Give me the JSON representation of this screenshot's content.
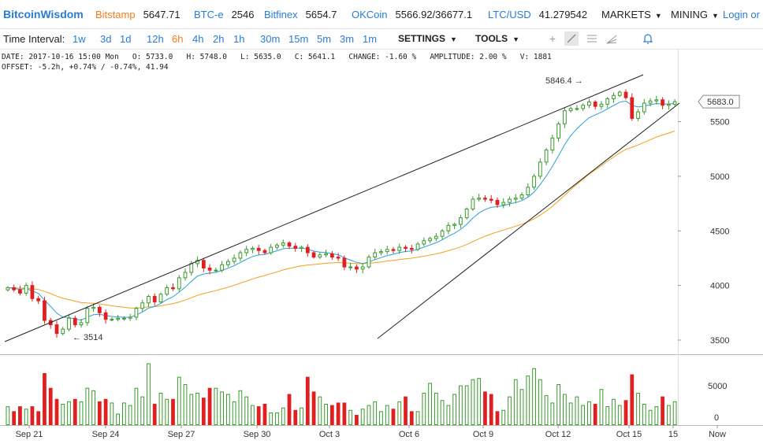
{
  "header": {
    "brand": "BitcoinWisdom",
    "tickers": [
      {
        "name": "Bitstamp",
        "price": "5647.71",
        "accent": "#f07c1f"
      },
      {
        "name": "BTC-e",
        "price": "2546",
        "accent": "#2a7bd6"
      },
      {
        "name": "Bitfinex",
        "price": "5654.7",
        "accent": "#2a7bd6"
      },
      {
        "name": "OKCoin",
        "price": "5566.92/36677.1",
        "accent": "#2a7bd6"
      },
      {
        "name": "LTC/USD",
        "price": "41.279542",
        "accent": "#2a7bd6"
      }
    ],
    "menus": [
      "MARKETS",
      "MINING"
    ],
    "login": "Login or Re"
  },
  "toolbar": {
    "label": "Time Interval:",
    "intervals": [
      "1w",
      "3d",
      "1d",
      "12h",
      "6h",
      "4h",
      "2h",
      "1h",
      "30m",
      "15m",
      "5m",
      "3m",
      "1m"
    ],
    "active_interval": "6h",
    "settings": "SETTINGS",
    "tools": "TOOLS",
    "tool_icons": [
      "crosshair-icon",
      "line-tool-icon",
      "parallel-lines-icon",
      "fan-tool-icon",
      "alarm-bell-icon"
    ]
  },
  "info": {
    "line1": "DATE: 2017-10-16 15:00 Mon   O: 5733.0   H: 5748.0   L: 5635.0   C: 5641.1   CHANGE: -1.60 %   AMPLITUDE: 2.00 %   V: 1881",
    "line2": "OFFSET: -5.2h, +0.74% / -0.74%, 41.94"
  },
  "chart_data": {
    "type": "candlestick",
    "price_axis": {
      "ticks": [
        "5500",
        "5000",
        "4500",
        "4000",
        "3500"
      ],
      "range": [
        3500,
        5850
      ]
    },
    "volume_axis": {
      "ticks": [
        "5000",
        "0"
      ]
    },
    "date_labels": [
      "Sep 21",
      "Sep 24",
      "Sep 27",
      "Sep 30",
      "Oct 3",
      "Oct 6",
      "Oct 9",
      "Oct 12",
      "Oct 15",
      "15",
      "Now"
    ],
    "current_price": "5683.0",
    "annotations": {
      "high": "5846.4 →",
      "low": "← 3514"
    },
    "colors": {
      "up": "#3a9a2e",
      "down": "#e02020",
      "ema_fast": "#2aa0d6",
      "ema_slow": "#f0a020",
      "trend": "#222"
    },
    "closes": [
      3980,
      3960,
      3930,
      4000,
      3880,
      3860,
      3680,
      3640,
      3560,
      3600,
      3700,
      3640,
      3660,
      3790,
      3800,
      3750,
      3690,
      3690,
      3700,
      3700,
      3710,
      3790,
      3840,
      3900,
      3850,
      3920,
      3980,
      3970,
      4070,
      4120,
      4200,
      4230,
      4160,
      4140,
      4140,
      4190,
      4220,
      4250,
      4300,
      4330,
      4340,
      4320,
      4300,
      4350,
      4370,
      4390,
      4360,
      4340,
      4350,
      4300,
      4260,
      4280,
      4290,
      4260,
      4250,
      4170,
      4170,
      4150,
      4170,
      4260,
      4300,
      4310,
      4330,
      4320,
      4350,
      4340,
      4330,
      4380,
      4410,
      4430,
      4450,
      4500,
      4550,
      4560,
      4620,
      4700,
      4790,
      4800,
      4790,
      4780,
      4740,
      4760,
      4790,
      4800,
      4830,
      4900,
      5000,
      5130,
      5240,
      5350,
      5480,
      5600,
      5620,
      5620,
      5650,
      5680,
      5640,
      5660,
      5710,
      5740,
      5770,
      5720,
      5530,
      5590,
      5670,
      5690,
      5700,
      5650,
      5660,
      5683
    ],
    "volumes": [
      1500,
      1100,
      1500,
      1300,
      1500,
      1100,
      4200,
      3000,
      2100,
      1700,
      1900,
      2100,
      1900,
      3000,
      2800,
      1900,
      2100,
      1800,
      900,
      1800,
      1600,
      3000,
      2300,
      5000,
      1700,
      2600,
      2100,
      2100,
      3900,
      3300,
      2500,
      2600,
      2200,
      3000,
      3000,
      2700,
      2500,
      1900,
      2800,
      2300,
      1600,
      1500,
      1700,
      1000,
      1000,
      1400,
      2500,
      1200,
      1400,
      3900,
      2700,
      2300,
      1700,
      1600,
      1800,
      1800,
      1200,
      800,
      1300,
      1600,
      1900,
      1100,
      1600,
      1300,
      1900,
      2300,
      1100,
      1100,
      2600,
      3400,
      2600,
      2000,
      1600,
      2500,
      3200,
      3200,
      3700,
      3800,
      2700,
      2500,
      1100,
      1200,
      2300,
      3700,
      2900,
      4000,
      4600,
      3700,
      2400,
      1800,
      3300,
      2500,
      1800,
      2300,
      1600,
      1900,
      1700,
      2900,
      1500,
      2100,
      1600,
      2000,
      4100,
      2600,
      1700,
      1200,
      1500,
      2300,
      1600,
      1900
    ]
  }
}
